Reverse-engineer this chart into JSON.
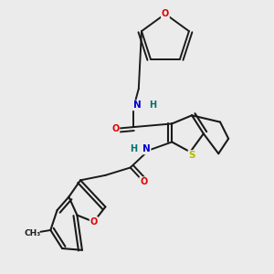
{
  "background_color": "#ebebeb",
  "bond_color": "#1a1a1a",
  "atom_colors": {
    "O": "#e00000",
    "N": "#0000cc",
    "S": "#b8b800",
    "H": "#007070",
    "C": "#1a1a1a"
  },
  "figsize": [
    3.0,
    3.0
  ],
  "dpi": 100
}
